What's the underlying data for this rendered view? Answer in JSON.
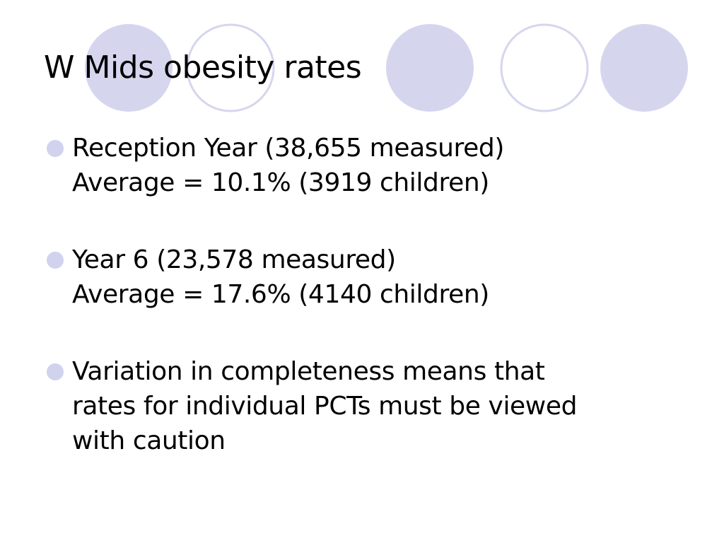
{
  "slide": {
    "title": "W Mids obesity rates",
    "bullets": [
      {
        "lines": [
          "Reception Year (38,655 measured)",
          "Average = 10.1% (3919 children)"
        ]
      },
      {
        "lines": [
          "Year 6 (23,578 measured)",
          "Average = 17.6% (4140 children)"
        ]
      },
      {
        "lines": [
          "Variation in completeness means that",
          "rates for individual PCTs must be viewed",
          "with caution"
        ]
      }
    ]
  },
  "colors": {
    "circle_fill": "#d5d6ee",
    "circle_outline": "#d5d6ee",
    "bullet_dot": "#d0d2ee",
    "text": "#000000"
  }
}
